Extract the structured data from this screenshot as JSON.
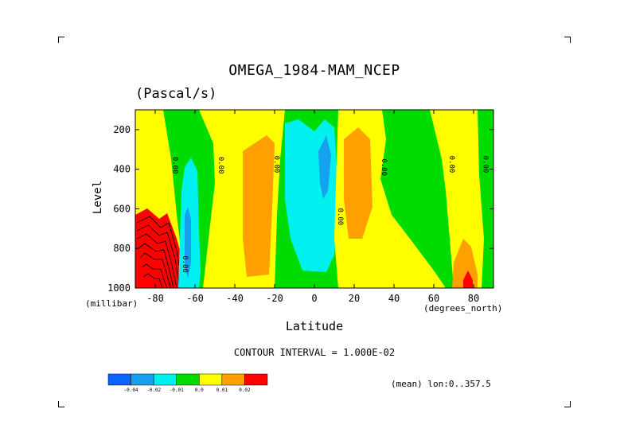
{
  "chart_data": {
    "type": "heatmap",
    "title": "OMEGA_1984-MAM_NCEP",
    "subtitle": "(Pascal/s)",
    "xlabel": "Latitude",
    "ylabel": "Level",
    "x_unit": "(degrees_north)",
    "y_unit": "(millibar)",
    "xlim": [
      -90,
      90
    ],
    "ylim": [
      1000,
      100
    ],
    "x_ticks": [
      -80,
      -60,
      -40,
      -20,
      0,
      20,
      40,
      60,
      80
    ],
    "y_ticks": [
      200,
      400,
      600,
      800,
      1000
    ],
    "contour_interval_text": "CONTOUR INTERVAL = 1.000E-02",
    "mean_text": "(mean) lon:0..357.5",
    "contour_labels": [
      {
        "text": "0.00",
        "lat": -71,
        "level": 380
      },
      {
        "text": "0.00",
        "lat": -48,
        "level": 380
      },
      {
        "text": "0.00",
        "lat": -20,
        "level": 375
      },
      {
        "text": "0.00",
        "lat": 12,
        "level": 640
      },
      {
        "text": "0.00",
        "lat": 34,
        "level": 390
      },
      {
        "text": "0.00",
        "lat": 68,
        "level": 375
      },
      {
        "text": "0.00",
        "lat": 85,
        "level": 375
      },
      {
        "text": "0.00",
        "lat": -66,
        "level": 880
      }
    ],
    "colorbar": {
      "colors": [
        "#0a64ff",
        "#18a0f0",
        "#00f0f0",
        "#00dc00",
        "#ffff00",
        "#ffa000",
        "#ff0000"
      ],
      "labels": [
        "-0.04",
        "-0.02",
        "-0.01",
        "0.0",
        "0.01",
        "0.02"
      ]
    },
    "regions": [
      {
        "name": "background",
        "value_band": "-0.01..0.0",
        "color": "#00dc00"
      },
      {
        "name": "south-pole-positive",
        "value_band": "0.0..0.01",
        "color": "#ffff00"
      },
      {
        "name": "south-pole-strong",
        "value_band": ">0.02",
        "color": "#ff0000"
      },
      {
        "name": "subpolar-south-negative",
        "value_band": "-0.02..-0.01",
        "color": "#00f0f0"
      },
      {
        "name": "subpolar-south-core",
        "value_band": "-0.04..-0.02",
        "color": "#18a0f0"
      },
      {
        "name": "southern-subtropics",
        "value_band": "0.0..0.01",
        "color": "#ffff00"
      },
      {
        "name": "southern-subtropics-core",
        "value_band": "0.01..0.02",
        "color": "#ffa000"
      },
      {
        "name": "equatorial-ascent",
        "value_band": "-0.02..-0.01",
        "color": "#00f0f0"
      },
      {
        "name": "equatorial-ascent-core",
        "value_band": "-0.04..-0.02",
        "color": "#18a0f0"
      },
      {
        "name": "northern-subtropics",
        "value_band": "0.0..0.01",
        "color": "#ffff00"
      },
      {
        "name": "northern-subtropics-core",
        "value_band": "0.01..0.02",
        "color": "#ffa000"
      },
      {
        "name": "arctic-positive",
        "value_band": "0.0..0.01",
        "color": "#ffff00"
      },
      {
        "name": "arctic-core",
        "value_band": "0.01..0.02",
        "color": "#ffa000"
      },
      {
        "name": "arctic-max",
        "value_band": ">0.02",
        "color": "#ff0000"
      }
    ]
  }
}
